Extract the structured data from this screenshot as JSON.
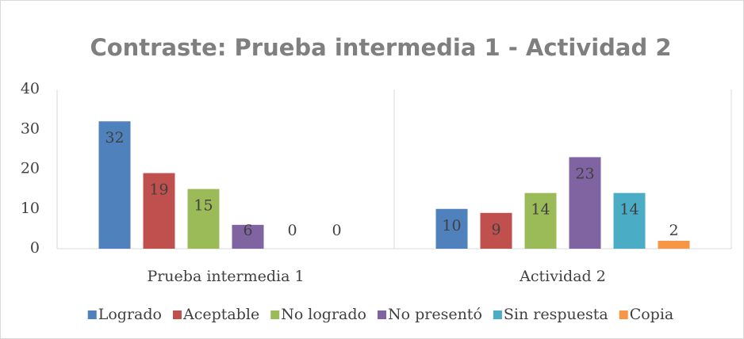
{
  "chart_data": {
    "type": "bar",
    "title": "Contraste: Prueba intermedia 1 - Actividad 2",
    "categories": [
      "Prueba intermedia 1",
      "Actividad 2"
    ],
    "series": [
      {
        "name": "Logrado",
        "color": "#4f81bd",
        "values": [
          32,
          10
        ]
      },
      {
        "name": "Aceptable",
        "color": "#c0504d",
        "values": [
          19,
          9
        ]
      },
      {
        "name": "No logrado",
        "color": "#9bbb59",
        "values": [
          15,
          14
        ]
      },
      {
        "name": "No presentó",
        "color": "#8064a2",
        "values": [
          6,
          23
        ]
      },
      {
        "name": "Sin respuesta",
        "color": "#4bacc6",
        "values": [
          0,
          14
        ]
      },
      {
        "name": "Copia",
        "color": "#f79646",
        "values": [
          0,
          2
        ]
      }
    ],
    "ylim": [
      0,
      40
    ],
    "yticks": [
      0,
      10,
      20,
      30,
      40
    ],
    "grid": false,
    "legend": "bottom"
  }
}
